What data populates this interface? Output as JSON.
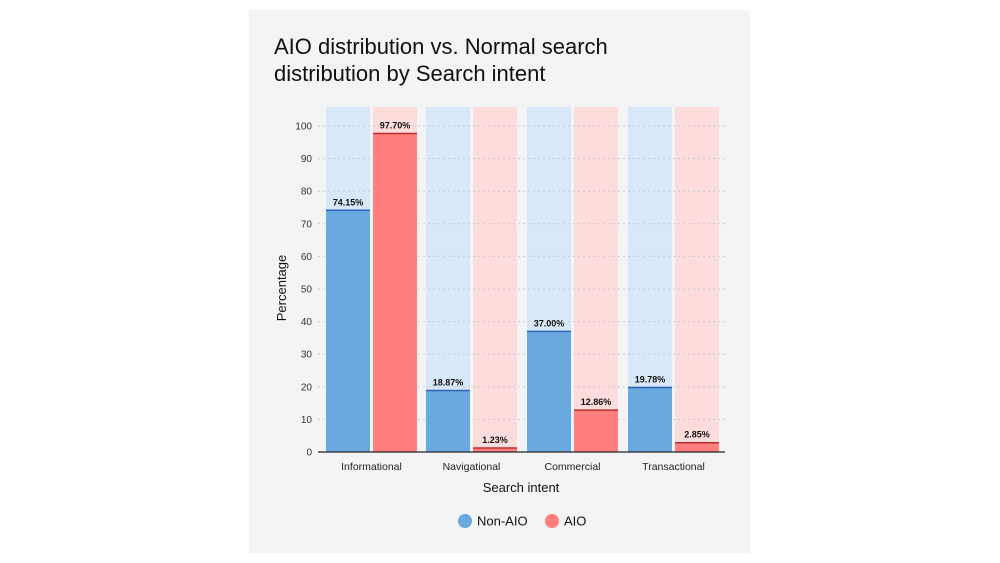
{
  "chart_data": {
    "type": "bar",
    "title": "AIO distribution vs. Normal search distribution by Search intent",
    "title_lines": [
      "AIO distribution vs. Normal search",
      "distribution by Search intent"
    ],
    "xlabel": "Search intent",
    "ylabel": "Percentage",
    "ylim": [
      0,
      100
    ],
    "yticks": [
      0,
      10,
      20,
      30,
      40,
      50,
      60,
      70,
      80,
      90,
      100
    ],
    "grid": true,
    "legend_position": "bottom",
    "categories": [
      "Informational",
      "Navigational",
      "Commercial",
      "Transactional"
    ],
    "series": [
      {
        "name": "Non-AIO",
        "color": "#6aa8e0",
        "bg": "#d8e8f8",
        "edge": "#2f64b4",
        "values": [
          74.15,
          18.87,
          37.0,
          19.78
        ],
        "labels": [
          "74.15%",
          "18.87%",
          "37.00%",
          "19.78%"
        ]
      },
      {
        "name": "AIO",
        "color": "#ff7f7f",
        "bg": "#fddcdc",
        "edge": "#b82e2e",
        "values": [
          97.7,
          1.23,
          12.86,
          2.85
        ],
        "labels": [
          "97.70%",
          "1.23%",
          "12.86%",
          "2.85%"
        ]
      }
    ]
  }
}
